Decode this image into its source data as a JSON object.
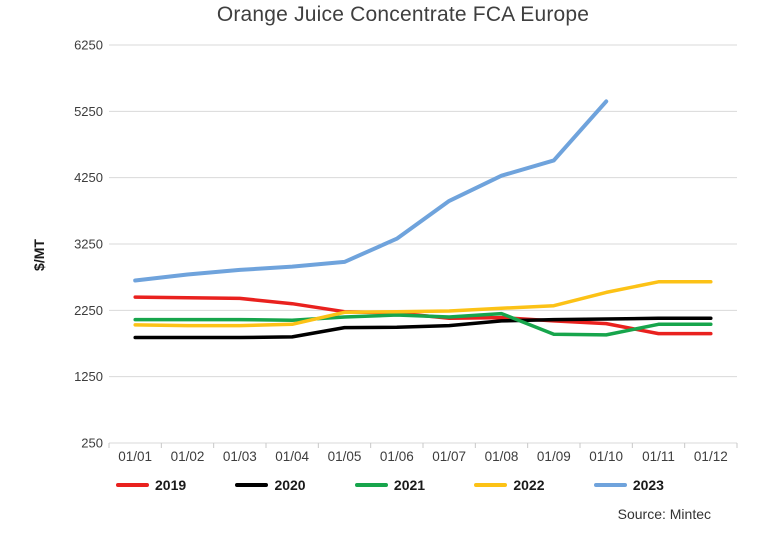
{
  "title": "Orange Juice Concentrate FCA Europe",
  "y_axis_label": "$/MT",
  "source": "Source: Mintec",
  "colors": {
    "gridline": "#d9d9d9",
    "axis_tick": "#c8c8c8",
    "text": "#3d3d3d",
    "title_text": "#3f3f3f"
  },
  "chart_data": {
    "type": "line",
    "title": "Orange Juice Concentrate FCA Europe",
    "xlabel": "",
    "ylabel": "$/MT",
    "categories": [
      "01/01",
      "01/02",
      "01/03",
      "01/04",
      "01/05",
      "01/06",
      "01/07",
      "01/08",
      "01/09",
      "01/10",
      "01/11",
      "01/12"
    ],
    "y_ticks": [
      6250,
      5250,
      4250,
      3250,
      2250,
      1250,
      250
    ],
    "ylim": [
      250,
      6250
    ],
    "grid": "horizontal",
    "legend_position": "bottom",
    "source": "Source: Mintec",
    "series": [
      {
        "name": "2019",
        "color": "#e9211e",
        "values": [
          2450,
          2440,
          2430,
          2350,
          2230,
          2210,
          2130,
          2140,
          2090,
          2050,
          1900,
          1900
        ]
      },
      {
        "name": "2020",
        "color": "#000000",
        "values": [
          1840,
          1840,
          1840,
          1850,
          1990,
          1995,
          2020,
          2090,
          2110,
          2120,
          2130,
          2130
        ]
      },
      {
        "name": "2021",
        "color": "#17a54c",
        "values": [
          2110,
          2110,
          2110,
          2100,
          2150,
          2180,
          2150,
          2200,
          1890,
          1880,
          2040,
          2040
        ]
      },
      {
        "name": "2022",
        "color": "#fcc216",
        "values": [
          2030,
          2020,
          2020,
          2040,
          2220,
          2230,
          2240,
          2280,
          2320,
          2520,
          2680,
          2680
        ]
      },
      {
        "name": "2023",
        "color": "#6fa3dc",
        "values": [
          2700,
          2790,
          2860,
          2910,
          2980,
          3330,
          3900,
          4280,
          4510,
          5400,
          null,
          null
        ]
      }
    ]
  }
}
